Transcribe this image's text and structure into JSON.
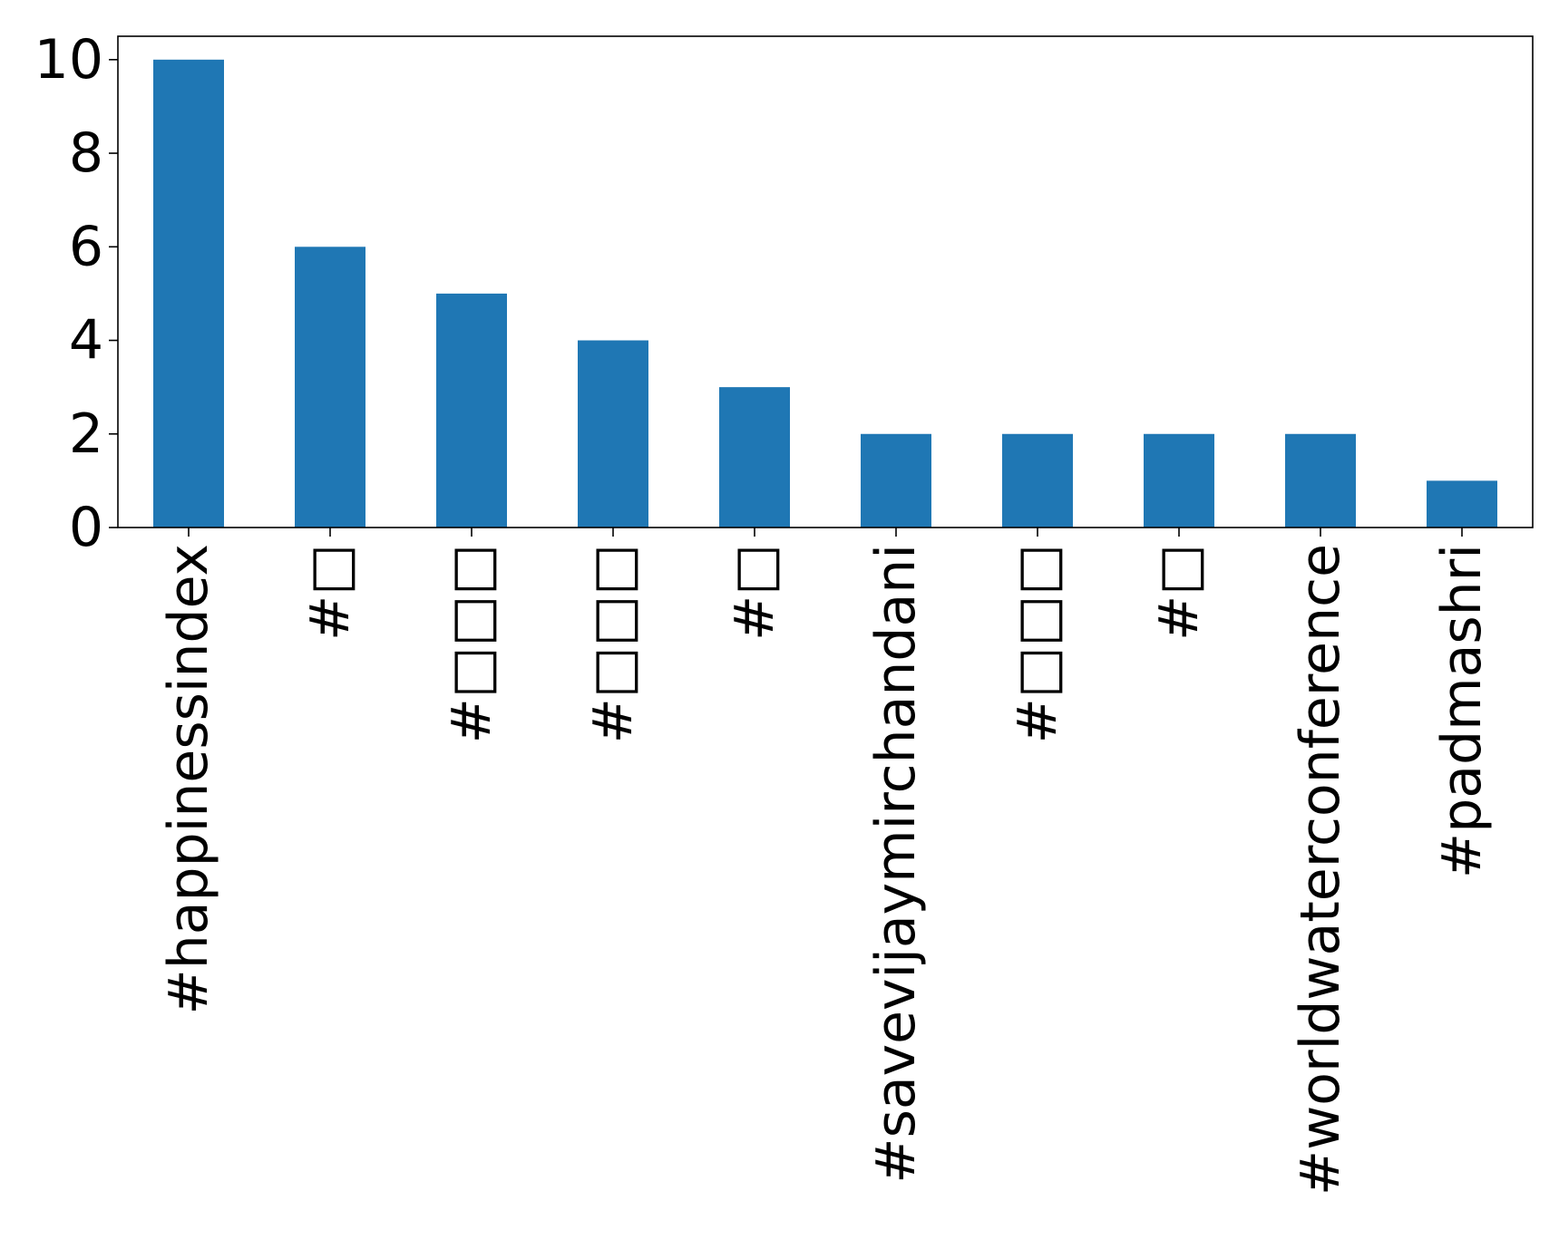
{
  "chart_data": {
    "type": "bar",
    "title": "",
    "xlabel": "",
    "ylabel": "",
    "categories": [
      "#happinessindex",
      "#□",
      "#□□□",
      "#□□□",
      "#□",
      "#savevijaymirchandani",
      "#□□□",
      "#□",
      "#worldwaterconference",
      "#padmashri"
    ],
    "values": [
      10,
      6,
      5,
      4,
      3,
      2,
      2,
      2,
      2,
      1
    ],
    "ylim": [
      0,
      10.5
    ],
    "yticks": [
      0,
      2,
      4,
      6,
      8,
      10
    ],
    "bar_color": "#1f77b4",
    "grid": false,
    "legend": false
  }
}
